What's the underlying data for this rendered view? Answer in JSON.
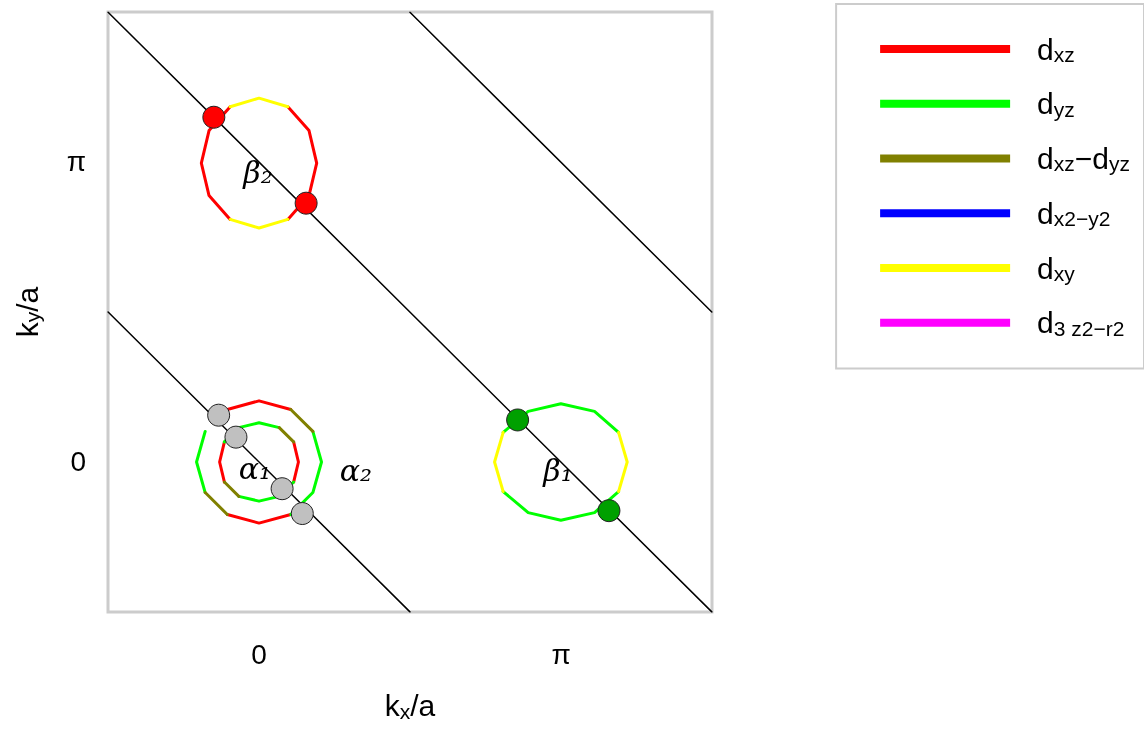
{
  "chart_data": {
    "type": "line",
    "xlabel": "k$_{x}$/a",
    "ylabel": "k$_{y}$/a",
    "xlim": [
      -1.571,
      4.712
    ],
    "ylim": [
      -1.571,
      4.712
    ],
    "xticks": [
      0,
      {
        "value": 3.1416,
        "label": "π"
      }
    ],
    "yticks": [
      0,
      {
        "value": 3.1416,
        "label": "π"
      }
    ],
    "grid": false,
    "legend": "right",
    "series": [
      {
        "name": "d$_{xz}$",
        "color": "#ff0000",
        "x": [
          0.3,
          0.52,
          0.6,
          0.52,
          0.3,
          null,
          -0.3,
          -0.52,
          -0.6,
          -0.52,
          -0.3,
          null,
          0.33,
          0,
          -0.33,
          null,
          -0.33,
          0,
          0.33,
          null,
          0.36,
          0.41,
          0.36,
          null,
          -0.36,
          -0.41,
          -0.36
        ],
        "values": [
          2.54,
          2.79,
          3.13,
          3.47,
          3.72,
          null,
          3.72,
          3.47,
          3.13,
          2.79,
          2.54,
          null,
          0.55,
          0.64,
          0.55,
          null,
          -0.55,
          -0.64,
          -0.55,
          null,
          -0.21,
          0,
          0.21,
          null,
          0.21,
          0,
          -0.21
        ]
      },
      {
        "name": "d$_{yz}$",
        "color": "#00ff00",
        "x": [
          3.74,
          3.49,
          3.14,
          2.8,
          2.54,
          null,
          2.54,
          2.8,
          3.14,
          3.49,
          3.74,
          null,
          0.33,
          0.56,
          0.65,
          0.56,
          null,
          null,
          -0.56,
          -0.65,
          -0.56,
          null,
          0.21,
          0,
          -0.21,
          -0.36,
          null,
          -0.21,
          0,
          0.21,
          0.36
        ],
        "values": [
          0.31,
          0.53,
          0.61,
          0.53,
          0.31,
          null,
          -0.31,
          -0.53,
          -0.61,
          -0.53,
          -0.31,
          null,
          -0.55,
          -0.32,
          0,
          0.32,
          null,
          null,
          0.32,
          0,
          -0.32,
          null,
          0.36,
          0.41,
          0.36,
          0.21,
          null,
          -0.36,
          -0.41,
          -0.36,
          -0.21
        ]
      },
      {
        "name": "d$_{xz}$−d$_{yz}$",
        "color": "#808000",
        "x": [
          0.56,
          0.33,
          null,
          -0.56,
          -0.33,
          null,
          0.36,
          0.21,
          null,
          -0.36,
          -0.21
        ],
        "values": [
          0.32,
          0.55,
          null,
          -0.32,
          -0.55,
          null,
          0.21,
          0.36,
          null,
          -0.21,
          -0.36
        ]
      },
      {
        "name": "d$_{x2−y2}$",
        "color": "#0000ff"
      },
      {
        "name": "d$_{xy}$",
        "color": "#ffff00",
        "x": [
          0.3,
          0,
          -0.3,
          null,
          -0.3,
          0,
          0.3,
          null,
          3.74,
          3.83,
          3.74,
          null,
          2.54,
          2.45,
          2.54
        ],
        "values": [
          3.72,
          3.81,
          3.72,
          null,
          2.54,
          2.45,
          2.54,
          null,
          -0.31,
          0,
          0.31,
          null,
          0.31,
          0,
          -0.31
        ]
      },
      {
        "name": "d$_{3 z2−r2}$",
        "color": "#ff00ff"
      },
      {
        "color": "#000000",
        "x": [
          -1.57,
          1.57
        ],
        "values": [
          1.57,
          -1.57
        ]
      },
      {
        "color": "#000000",
        "x": [
          -1.57,
          4.71
        ],
        "values": [
          4.71,
          -1.57
        ]
      },
      {
        "color": "#000000",
        "x": [
          1.57,
          4.71
        ],
        "values": [
          4.71,
          1.57
        ]
      },
      {
        "type": "scatter",
        "marker": "circle",
        "color": "#ff0000",
        "x": [
          -0.47,
          0.49
        ],
        "values": [
          3.61,
          2.71
        ]
      },
      {
        "type": "scatter",
        "marker": "circle",
        "color": "#00a000",
        "x": [
          2.69,
          3.64
        ],
        "values": [
          0.44,
          -0.51
        ]
      },
      {
        "type": "scatter",
        "marker": "circle",
        "color": "#c0c0c0",
        "x": [
          -0.42,
          -0.24,
          0.24,
          0.45
        ],
        "values": [
          0.49,
          0.26,
          -0.28,
          -0.54
        ]
      }
    ],
    "annotations": [
      "β₂",
      "α₁",
      "α₂",
      "β₁"
    ]
  }
}
